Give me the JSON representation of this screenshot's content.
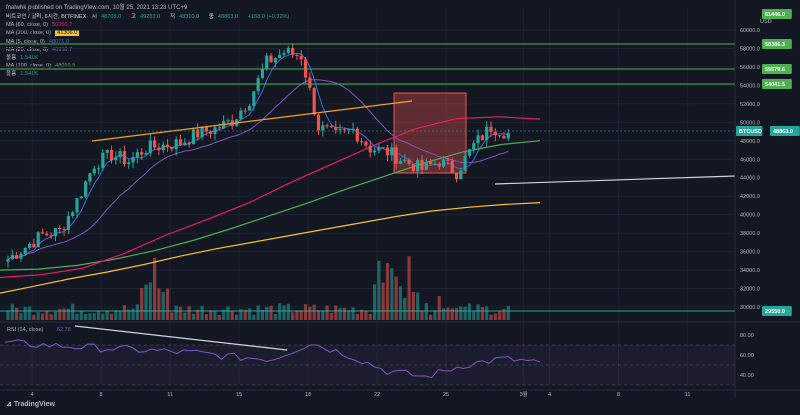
{
  "header": {
    "published": "fnalwhk published on TradingView.com, 10월 25, 2021 13:23 UTC+9"
  },
  "legend": {
    "symbol": "비트코인 / 달러, 6시간, BITFINEX",
    "ohlc": [
      {
        "label": "시",
        "value": "48705.0"
      },
      {
        "label": "고",
        "value": "49283.0"
      },
      {
        "label": "저",
        "value": "48310.0"
      },
      {
        "label": "종",
        "value": "48863.0"
      },
      {
        "label": "",
        "value": "+158.0 (+0.32%)"
      }
    ],
    "indicators": [
      {
        "label": "MA (60, close, 0)",
        "value": "50350.7",
        "color": "#e91e63"
      },
      {
        "label": "MA (200, close, 0)",
        "value": "41306.0",
        "color": "#fbc02d"
      },
      {
        "label": "MA (5, close, 0)",
        "value": "48071.0",
        "color": "#3f6ad8"
      },
      {
        "label": "MA (20, close, 0)",
        "value": "46958.7",
        "color": "#7e57c2"
      },
      {
        "label": "볼륨",
        "value": "1.541K",
        "color": "#26a69a"
      },
      {
        "label": "MA (100, close, 0)",
        "value": "48010.5",
        "color": "#4caf50"
      },
      {
        "label": "볼륨",
        "value": "1.541K",
        "color": "#26a69a"
      }
    ]
  },
  "axis": {
    "unit": "USD",
    "price_ticks": [
      "60000.0",
      "58000.0",
      "56000.0",
      "54000.0",
      "52000.0",
      "50000.0",
      "48000.0",
      "46000.0",
      "44000.0",
      "42000.0",
      "40000.0",
      "38000.0",
      "36000.0",
      "34000.0",
      "32000.0",
      "30000.0"
    ],
    "rsi_ticks": [
      "80.00",
      "60.00",
      "40.00"
    ],
    "x_ticks": [
      "4",
      "8",
      "11",
      "15",
      "18",
      "22",
      "25",
      "3월",
      "4",
      "8",
      "11"
    ]
  },
  "price_tags": [
    {
      "label": "61446.0",
      "color": "#4caf50"
    },
    {
      "label": "58386.3",
      "color": "#4caf50"
    },
    {
      "label": "55579.6",
      "color": "#4caf50"
    },
    {
      "label": "54041.5",
      "color": "#4caf50"
    },
    {
      "label": "BTCUSD",
      "color": "#26a69a"
    },
    {
      "label": "48863.0",
      "color": "#26a69a"
    },
    {
      "label": "29550.0",
      "color": "#26a69a"
    }
  ],
  "rsi": {
    "label": "RSI (14, close)",
    "value": "52.78"
  },
  "brand": "TradingView",
  "colors": {
    "bg": "#131722",
    "up": "#26a69a",
    "down": "#ef5350"
  },
  "chart_data": {
    "type": "line",
    "title": "",
    "xlabel": "",
    "ylabel": "USD",
    "ylim": [
      29550,
      61446
    ],
    "grid": true,
    "horizontal_levels": [
      58386.3,
      55579.6,
      54041.5,
      48863.0,
      29550.0
    ],
    "series": [
      {
        "name": "BTCUSD",
        "x_days": [
          0,
          1,
          2,
          3,
          4,
          5,
          6,
          7,
          8,
          9,
          10,
          11,
          12,
          13,
          14,
          15,
          16,
          17,
          18,
          19,
          20,
          21,
          22,
          23,
          24,
          25,
          26,
          27,
          28,
          29
        ],
        "values": [
          35200,
          36500,
          37800,
          38200,
          41500,
          45500,
          46500,
          45800,
          47200,
          47500,
          47800,
          48800,
          49300,
          50200,
          52500,
          56500,
          57600,
          57200,
          49500,
          48500,
          49200,
          47200,
          46800,
          45800,
          44900,
          45800,
          44600,
          47500,
          49500,
          48863
        ]
      },
      {
        "name": "MA (200, close, 0)",
        "values": [
          31500,
          32300,
          33100,
          33800,
          34600,
          35500,
          36300,
          37000,
          37700,
          38400,
          39100,
          39800,
          40400,
          40800,
          41100,
          41306
        ]
      },
      {
        "name": "MA (100, close, 0)",
        "values": [
          34000,
          34100,
          34500,
          35200,
          36100,
          37200,
          38500,
          39900,
          41300,
          42800,
          44200,
          45600,
          46800,
          47600,
          48010
        ]
      },
      {
        "name": "MA (60, close, 0)",
        "values": [
          33200,
          33500,
          34200,
          35800,
          37800,
          39500,
          41300,
          43500,
          45500,
          47500,
          49300,
          50400,
          50600,
          50350
        ]
      },
      {
        "name": "RSI (14, close)",
        "values": [
          72,
          70,
          68,
          66,
          64,
          62,
          58,
          56,
          72,
          60,
          44,
          38,
          50,
          56,
          52.78
        ]
      }
    ]
  }
}
